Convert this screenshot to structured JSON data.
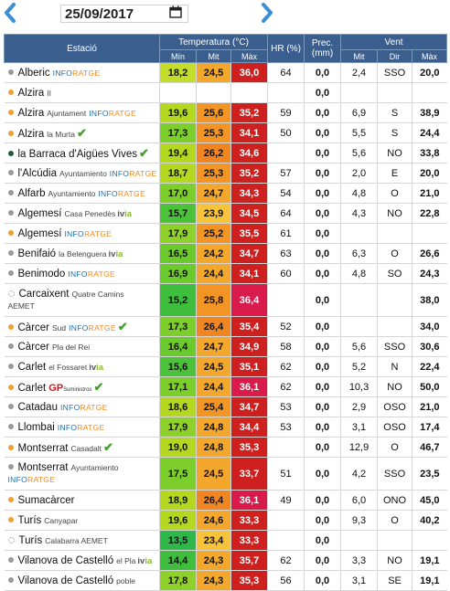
{
  "toolbar": {
    "prev_icon": "chevron-left-icon",
    "next_icon": "chevron-right-icon",
    "date_value": "25/09/2017",
    "calendar_icon": "calendar-icon"
  },
  "colors": {
    "header_bg": "#3a5f8f",
    "arrow": "#3c8fd6",
    "dot_gray": "#9a9a9a",
    "dot_orange": "#f0a030",
    "dot_darkgreen": "#1f5e3a"
  },
  "headers": {
    "station": "Estació",
    "temperature": "Temperatura (°C)",
    "hr": "HR (%)",
    "prec": "Prec. (mm)",
    "wind": "Vent",
    "t_min": "Mín",
    "t_mit": "Mit",
    "t_max": "Màx",
    "w_mit": "Mit",
    "w_dir": "Dir",
    "w_max": "Màx"
  },
  "rows": [
    {
      "name": "Alberic",
      "sub": "",
      "logo": "info",
      "check": false,
      "dot": "gray",
      "tmin": "18,2",
      "tmit": "24,5",
      "tmax": "36,0",
      "hr": "64",
      "prec": "0,0",
      "wmit": "2,4",
      "wdir": "SSO",
      "wmax": "20,0",
      "cmin": "#c4dd2a",
      "cmit": "#f3a72c",
      "cmax": "#cf2020"
    },
    {
      "name": "Alzira",
      "sub": "II",
      "logo": "",
      "check": false,
      "dot": "orange",
      "tmin": "",
      "tmit": "",
      "tmax": "",
      "hr": "",
      "prec": "0,0",
      "wmit": "",
      "wdir": "",
      "wmax": "",
      "cmin": "#ffffff",
      "cmit": "#ffffff",
      "cmax": "#ffffff"
    },
    {
      "name": "Alzira",
      "sub": "Ajuntament",
      "logo": "info",
      "check": false,
      "dot": "orange",
      "tmin": "19,6",
      "tmit": "25,6",
      "tmax": "35,2",
      "hr": "59",
      "prec": "0,0",
      "wmit": "6,9",
      "wdir": "S",
      "wmax": "38,9",
      "cmin": "#b4d81f",
      "cmit": "#f29524",
      "cmax": "#cf2020"
    },
    {
      "name": "Alzira",
      "sub": "la Murta",
      "logo": "",
      "check": true,
      "dot": "orange",
      "tmin": "17,3",
      "tmit": "25,3",
      "tmax": "34,1",
      "hr": "50",
      "prec": "0,0",
      "wmit": "5,5",
      "wdir": "S",
      "wmax": "24,4",
      "cmin": "#7ccf2a",
      "cmit": "#f29524",
      "cmax": "#cf2020"
    },
    {
      "name": "la Barraca d'Aigües Vives",
      "sub": "",
      "logo": "",
      "check": true,
      "dot": "darkgreen",
      "tmin": "19,4",
      "tmit": "26,2",
      "tmax": "34,6",
      "hr": "",
      "prec": "0,0",
      "wmit": "5,6",
      "wdir": "NO",
      "wmax": "33,8",
      "cmin": "#b4d81f",
      "cmit": "#f08522",
      "cmax": "#cf2020"
    },
    {
      "name": "l'Alcúdia",
      "sub": "Ayuntamiento",
      "logo": "info",
      "check": false,
      "dot": "gray",
      "tmin": "18,7",
      "tmit": "25,3",
      "tmax": "35,2",
      "hr": "57",
      "prec": "0,0",
      "wmit": "2,0",
      "wdir": "E",
      "wmax": "20,0",
      "cmin": "#b4d81f",
      "cmit": "#f29524",
      "cmax": "#cf2020"
    },
    {
      "name": "Alfarb",
      "sub": "Ayuntamiento",
      "logo": "info",
      "check": false,
      "dot": "gray",
      "tmin": "17,0",
      "tmit": "24,7",
      "tmax": "34,3",
      "hr": "54",
      "prec": "0,0",
      "wmit": "4,8",
      "wdir": "O",
      "wmax": "21,0",
      "cmin": "#7ccf2a",
      "cmit": "#f3a72c",
      "cmax": "#cf2020"
    },
    {
      "name": "Algemesí",
      "sub": "Casa Penedès",
      "logo": "ivia",
      "check": false,
      "dot": "gray",
      "tmin": "15,7",
      "tmit": "23,9",
      "tmax": "34,5",
      "hr": "64",
      "prec": "0,0",
      "wmit": "4,3",
      "wdir": "NO",
      "wmax": "22,8",
      "cmin": "#4cc23a",
      "cmit": "#f6c33a",
      "cmax": "#cf2020"
    },
    {
      "name": "Algemesí",
      "sub": "",
      "logo": "info",
      "check": false,
      "dot": "orange",
      "tmin": "17,9",
      "tmit": "25,2",
      "tmax": "35,5",
      "hr": "61",
      "prec": "0,0",
      "wmit": "",
      "wdir": "",
      "wmax": "",
      "cmin": "#8ed12a",
      "cmit": "#f29524",
      "cmax": "#cf2020"
    },
    {
      "name": "Benifaió",
      "sub": "la Belenguera",
      "logo": "ivia",
      "check": false,
      "dot": "gray",
      "tmin": "16,5",
      "tmit": "24,2",
      "tmax": "34,7",
      "hr": "63",
      "prec": "0,0",
      "wmit": "6,3",
      "wdir": "O",
      "wmax": "26,6",
      "cmin": "#6ccb2c",
      "cmit": "#f3a72c",
      "cmax": "#cf2020"
    },
    {
      "name": "Benimodo",
      "sub": "",
      "logo": "info",
      "check": false,
      "dot": "gray",
      "tmin": "16,9",
      "tmit": "24,4",
      "tmax": "34,1",
      "hr": "60",
      "prec": "0,0",
      "wmit": "4,8",
      "wdir": "SO",
      "wmax": "24,3",
      "cmin": "#6ccb2c",
      "cmit": "#f3a72c",
      "cmax": "#cf2020"
    },
    {
      "name": "Carcaixent",
      "sub": "Quatre Camins",
      "sub2": "AEMET",
      "logo": "",
      "check": false,
      "dot": "hollow",
      "tall": true,
      "tmin": "15,2",
      "tmit": "25,8",
      "tmax": "36,4",
      "hr": "",
      "prec": "0,0",
      "wmit": "",
      "wdir": "",
      "wmax": "38,0",
      "cmin": "#3fbe3e",
      "cmit": "#f29524",
      "cmax": "#d81b4b"
    },
    {
      "name": "Càrcer",
      "sub": "Sud",
      "logo": "info",
      "check": true,
      "dot": "orange",
      "tmin": "17,3",
      "tmit": "26,4",
      "tmax": "35,4",
      "hr": "52",
      "prec": "0,0",
      "wmit": "",
      "wdir": "",
      "wmax": "34,0",
      "cmin": "#7ccf2a",
      "cmit": "#f08522",
      "cmax": "#cf2020"
    },
    {
      "name": "Càrcer",
      "sub": "Pla del Rei",
      "logo": "",
      "check": false,
      "dot": "gray",
      "tmin": "16,4",
      "tmit": "24,7",
      "tmax": "34,9",
      "hr": "58",
      "prec": "0,0",
      "wmit": "5,6",
      "wdir": "SSO",
      "wmax": "30,6",
      "cmin": "#6ccb2c",
      "cmit": "#f3a72c",
      "cmax": "#cf2020"
    },
    {
      "name": "Carlet",
      "sub": "el Fossaret",
      "logo": "ivia",
      "check": false,
      "dot": "gray",
      "tmin": "15,6",
      "tmit": "24,5",
      "tmax": "35,1",
      "hr": "62",
      "prec": "0,0",
      "wmit": "5,2",
      "wdir": "N",
      "wmax": "22,4",
      "cmin": "#4cc23a",
      "cmit": "#f3a72c",
      "cmax": "#cf2020"
    },
    {
      "name": "Carlet",
      "sub": "",
      "logo": "gp",
      "check": true,
      "dot": "orange",
      "tmin": "17,1",
      "tmit": "24,4",
      "tmax": "36,1",
      "hr": "62",
      "prec": "0,0",
      "wmit": "10,3",
      "wdir": "NO",
      "wmax": "50,0",
      "cmin": "#7ccf2a",
      "cmit": "#f3a72c",
      "cmax": "#d81b4b"
    },
    {
      "name": "Catadau",
      "sub": "",
      "logo": "info",
      "check": false,
      "dot": "gray",
      "tmin": "18,6",
      "tmit": "25,4",
      "tmax": "34,7",
      "hr": "53",
      "prec": "0,0",
      "wmit": "2,9",
      "wdir": "OSO",
      "wmax": "21,0",
      "cmin": "#b4d81f",
      "cmit": "#f29524",
      "cmax": "#cf2020"
    },
    {
      "name": "Llombai",
      "sub": "",
      "logo": "info",
      "check": false,
      "dot": "gray",
      "tmin": "17,9",
      "tmit": "24,8",
      "tmax": "34,4",
      "hr": "53",
      "prec": "0,0",
      "wmit": "3,1",
      "wdir": "OSO",
      "wmax": "17,4",
      "cmin": "#8ed12a",
      "cmit": "#f3a72c",
      "cmax": "#cf2020"
    },
    {
      "name": "Montserrat",
      "sub": "Casadalt",
      "logo": "",
      "check": true,
      "dot": "orange",
      "tmin": "19,0",
      "tmit": "24,8",
      "tmax": "35,3",
      "hr": "",
      "prec": "0,0",
      "wmit": "12,9",
      "wdir": "O",
      "wmax": "46,7",
      "cmin": "#b4d81f",
      "cmit": "#f3a72c",
      "cmax": "#cf2020"
    },
    {
      "name": "Montserrat",
      "sub": "Ayuntamiento",
      "sub2line": "info",
      "logo": "",
      "check": false,
      "dot": "gray",
      "tall": true,
      "tmin": "17,5",
      "tmit": "24,5",
      "tmax": "33,7",
      "hr": "51",
      "prec": "0,0",
      "wmit": "4,2",
      "wdir": "SSO",
      "wmax": "23,5",
      "cmin": "#7ccf2a",
      "cmit": "#f3a72c",
      "cmax": "#cf2020"
    },
    {
      "name": "Sumacàrcer",
      "sub": "",
      "logo": "",
      "check": false,
      "dot": "orange",
      "tmin": "18,9",
      "tmit": "26,4",
      "tmax": "36,1",
      "hr": "49",
      "prec": "0,0",
      "wmit": "6,0",
      "wdir": "ONO",
      "wmax": "45,0",
      "cmin": "#b4d81f",
      "cmit": "#f08522",
      "cmax": "#d81b4b"
    },
    {
      "name": "Turís",
      "sub": "Canyapar",
      "logo": "",
      "check": false,
      "dot": "orange",
      "tmin": "19,6",
      "tmit": "24,6",
      "tmax": "33,3",
      "hr": "",
      "prec": "0,0",
      "wmit": "9,3",
      "wdir": "O",
      "wmax": "40,2",
      "cmin": "#b4d81f",
      "cmit": "#f3a72c",
      "cmax": "#cf2020"
    },
    {
      "name": "Turís",
      "sub": "Calabarra AEMET",
      "logo": "",
      "check": false,
      "dot": "hollow",
      "tmin": "13,5",
      "tmit": "23,4",
      "tmax": "33,3",
      "hr": "",
      "prec": "0,0",
      "wmit": "",
      "wdir": "",
      "wmax": "",
      "cmin": "#2fb84a",
      "cmit": "#f6c33a",
      "cmax": "#cf2020"
    },
    {
      "name": "Vilanova de Castelló",
      "sub": "el Pla",
      "logo": "ivia",
      "check": false,
      "dot": "gray",
      "tmin": "14,4",
      "tmit": "24,3",
      "tmax": "35,7",
      "hr": "62",
      "prec": "0,0",
      "wmit": "3,3",
      "wdir": "NO",
      "wmax": "19,1",
      "cmin": "#3fbe3e",
      "cmit": "#f3a72c",
      "cmax": "#cf2020"
    },
    {
      "name": "Vilanova de Castelló",
      "sub": "poble",
      "logo": "",
      "check": false,
      "dot": "gray",
      "tmin": "17,8",
      "tmit": "24,3",
      "tmax": "35,3",
      "hr": "56",
      "prec": "0,0",
      "wmit": "3,1",
      "wdir": "SE",
      "wmax": "19,1",
      "cmin": "#8ed12a",
      "cmit": "#f3a72c",
      "cmax": "#cf2020"
    }
  ]
}
